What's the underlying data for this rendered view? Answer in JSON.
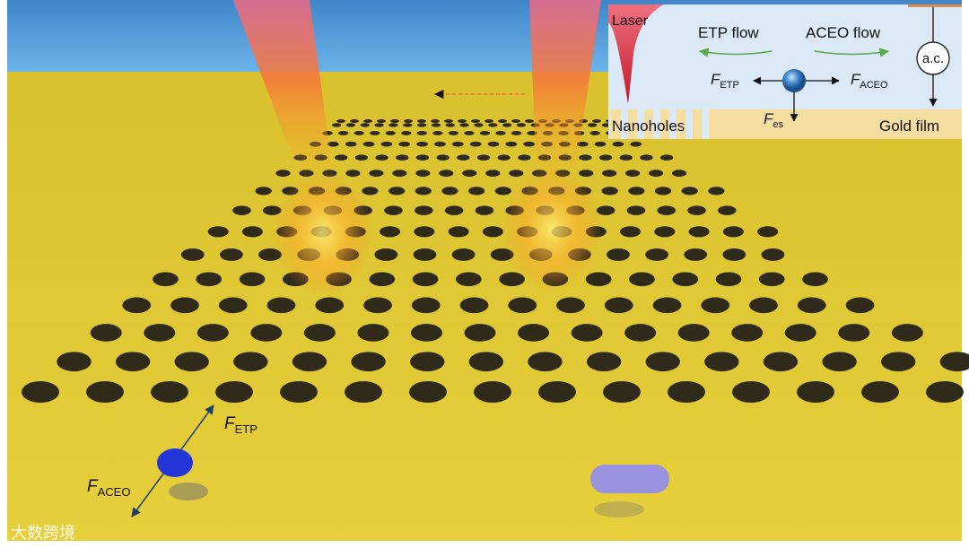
{
  "inset": {
    "laser": "Laser",
    "etp_flow": "ETP flow",
    "aceo_flow": "ACEO flow",
    "ac": "a.c.",
    "f_etp": {
      "symbol": "F",
      "subscript": "ETP"
    },
    "f_aceo": {
      "symbol": "F",
      "subscript": "ACEO"
    },
    "f_es": {
      "symbol": "F",
      "subscript": "es"
    },
    "nanoholes": "Nanoholes",
    "gold_film": "Gold film"
  },
  "scene": {
    "f_etp": {
      "symbol": "F",
      "subscript": "ETP"
    },
    "f_aceo": {
      "symbol": "F",
      "subscript": "ACEO"
    }
  },
  "watermark": "大数跨境"
}
